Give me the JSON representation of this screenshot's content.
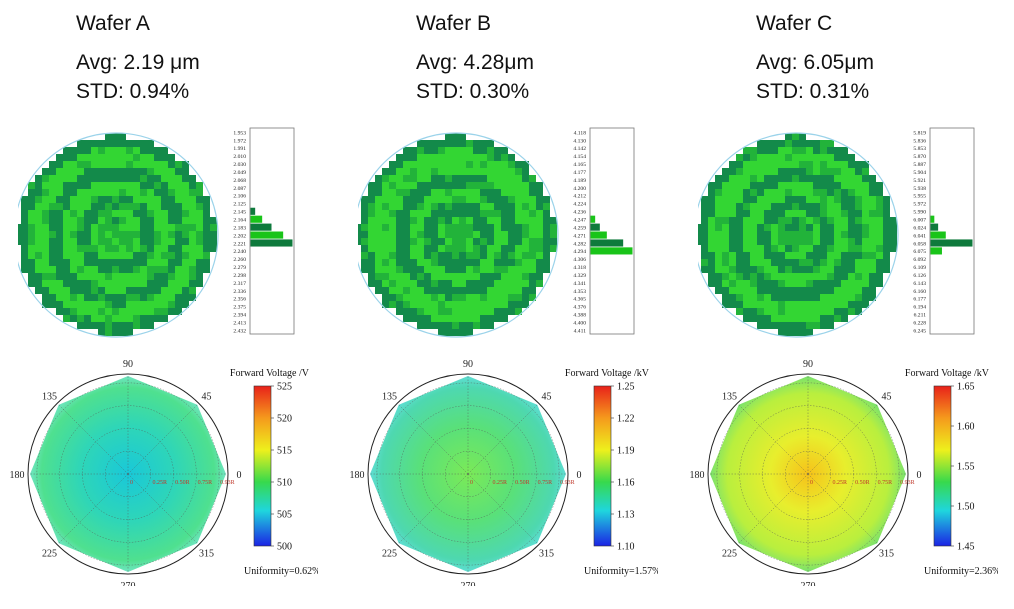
{
  "wafers": [
    {
      "title": "Wafer A",
      "avg": "Avg: 2.19 μm",
      "std": "STD: 0.94%",
      "histogram_labels": [
        "1.953",
        "1.972",
        "1.991",
        "2.010",
        "2.030",
        "2.049",
        "2.068",
        "2.087",
        "2.106",
        "2.125",
        "2.145",
        "2.164",
        "2.183",
        "2.202",
        "2.221",
        "2.240",
        "2.260",
        "2.279",
        "2.298",
        "2.317",
        "2.336",
        "2.356",
        "2.375",
        "2.394",
        "2.413",
        "2.432"
      ],
      "histogram_counts": [
        0,
        0,
        0,
        0,
        0,
        0,
        0,
        0,
        0,
        0,
        2,
        5,
        9,
        14,
        18,
        0,
        0,
        0,
        0,
        0,
        0,
        0,
        0,
        0,
        0,
        0
      ],
      "polar_angle_labels": [
        "90",
        "45",
        "0",
        "315",
        "270",
        "225",
        "180",
        "135"
      ],
      "polar_radius_labels": [
        "0",
        "0.25R",
        "0.50R",
        "0.75R",
        "0.93R"
      ],
      "colorbar_title": "Forward Voltage /V",
      "colorbar_ticks": [
        "525",
        "520",
        "515",
        "510",
        "505",
        "500"
      ],
      "uniformity": "Uniformity=0.62%"
    },
    {
      "title": "Wafer B",
      "avg": "Avg: 4.28μm",
      "std": "STD: 0.30%",
      "histogram_labels": [
        "4.118",
        "4.130",
        "4.142",
        "4.154",
        "4.165",
        "4.177",
        "4.189",
        "4.200",
        "4.212",
        "4.224",
        "4.236",
        "4.247",
        "4.259",
        "4.271",
        "4.282",
        "4.294",
        "4.306",
        "4.318",
        "4.329",
        "4.341",
        "4.353",
        "4.365",
        "4.376",
        "4.388",
        "4.400",
        "4.411"
      ],
      "histogram_counts": [
        0,
        0,
        0,
        0,
        0,
        0,
        0,
        0,
        0,
        0,
        0,
        2,
        4,
        7,
        14,
        18,
        0,
        0,
        0,
        0,
        0,
        0,
        0,
        0,
        0,
        0
      ],
      "polar_angle_labels": [
        "90",
        "45",
        "0",
        "315",
        "270",
        "225",
        "180",
        "135"
      ],
      "polar_radius_labels": [
        "0",
        "0.25R",
        "0.50R",
        "0.75R",
        "0.93R"
      ],
      "colorbar_title": "Forward Voltage /kV",
      "colorbar_ticks": [
        "1.25",
        "1.22",
        "1.19",
        "1.16",
        "1.13",
        "1.10"
      ],
      "uniformity": "Uniformity=1.57%"
    },
    {
      "title": "Wafer C",
      "avg": "Avg: 6.05μm",
      "std": "STD: 0.31%",
      "histogram_labels": [
        "5.819",
        "5.836",
        "5.853",
        "5.870",
        "5.887",
        "5.904",
        "5.921",
        "5.938",
        "5.955",
        "5.972",
        "5.990",
        "6.007",
        "6.024",
        "6.041",
        "6.058",
        "6.075",
        "6.092",
        "6.109",
        "6.126",
        "6.143",
        "6.160",
        "6.177",
        "6.194",
        "6.211",
        "6.228",
        "6.245"
      ],
      "histogram_counts": [
        0,
        0,
        0,
        0,
        0,
        0,
        0,
        0,
        0,
        0,
        0,
        2,
        4,
        8,
        22,
        6,
        0,
        0,
        0,
        0,
        0,
        0,
        0,
        0,
        0,
        0
      ],
      "polar_angle_labels": [
        "90",
        "45",
        "0",
        "315",
        "270",
        "225",
        "180",
        "135"
      ],
      "polar_radius_labels": [
        "0",
        "0.25R",
        "0.50R",
        "0.75R",
        "0.93R"
      ],
      "colorbar_title": "Forward Voltage /kV",
      "colorbar_ticks": [
        "1.65",
        "1.60",
        "1.55",
        "1.50",
        "1.45"
      ],
      "uniformity": "Uniformity=2.36%"
    }
  ],
  "chart_data": [
    {
      "type": "heatmap",
      "title": "Wafer A",
      "bins": [
        "1.953",
        "1.972",
        "1.991",
        "2.010",
        "2.030",
        "2.049",
        "2.068",
        "2.087",
        "2.106",
        "2.125",
        "2.145",
        "2.164",
        "2.183",
        "2.202",
        "2.221",
        "2.240",
        "2.260",
        "2.279",
        "2.298",
        "2.317",
        "2.336",
        "2.356",
        "2.375",
        "2.394",
        "2.413",
        "2.432"
      ],
      "counts": [
        0,
        0,
        0,
        0,
        0,
        0,
        0,
        0,
        0,
        0,
        2,
        5,
        9,
        14,
        18,
        0,
        0,
        0,
        0,
        0,
        0,
        0,
        0,
        0,
        0,
        0
      ]
    },
    {
      "type": "heatmap",
      "title": "Wafer B",
      "bins": [
        "4.118",
        "4.130",
        "4.142",
        "4.154",
        "4.165",
        "4.177",
        "4.189",
        "4.200",
        "4.212",
        "4.224",
        "4.236",
        "4.247",
        "4.259",
        "4.271",
        "4.282",
        "4.294",
        "4.306",
        "4.318",
        "4.329",
        "4.341",
        "4.353",
        "4.365",
        "4.376",
        "4.388",
        "4.400",
        "4.411"
      ],
      "counts": [
        0,
        0,
        0,
        0,
        0,
        0,
        0,
        0,
        0,
        0,
        0,
        2,
        4,
        7,
        14,
        18,
        0,
        0,
        0,
        0,
        0,
        0,
        0,
        0,
        0,
        0
      ]
    },
    {
      "type": "heatmap",
      "title": "Wafer C",
      "bins": [
        "5.819",
        "5.836",
        "5.853",
        "5.870",
        "5.887",
        "5.904",
        "5.921",
        "5.938",
        "5.955",
        "5.972",
        "5.990",
        "6.007",
        "6.024",
        "6.041",
        "6.058",
        "6.075",
        "6.092",
        "6.109",
        "6.126",
        "6.143",
        "6.160",
        "6.177",
        "6.194",
        "6.211",
        "6.228",
        "6.245"
      ],
      "counts": [
        0,
        0,
        0,
        0,
        0,
        0,
        0,
        0,
        0,
        0,
        0,
        2,
        4,
        8,
        22,
        6,
        0,
        0,
        0,
        0,
        0,
        0,
        0,
        0,
        0,
        0
      ]
    }
  ],
  "colors": {
    "map_light": "#33d633",
    "map_mid": "#22b33a",
    "map_dark": "#138a4a",
    "wafer_outline": "#9bd3ea",
    "hist_bar": "#19c419",
    "hist_bar_dark": "#0e7a3c",
    "polarA": "#3ad1a8",
    "polarB": "#4ee28a",
    "polarC": "#b4ee3a"
  }
}
